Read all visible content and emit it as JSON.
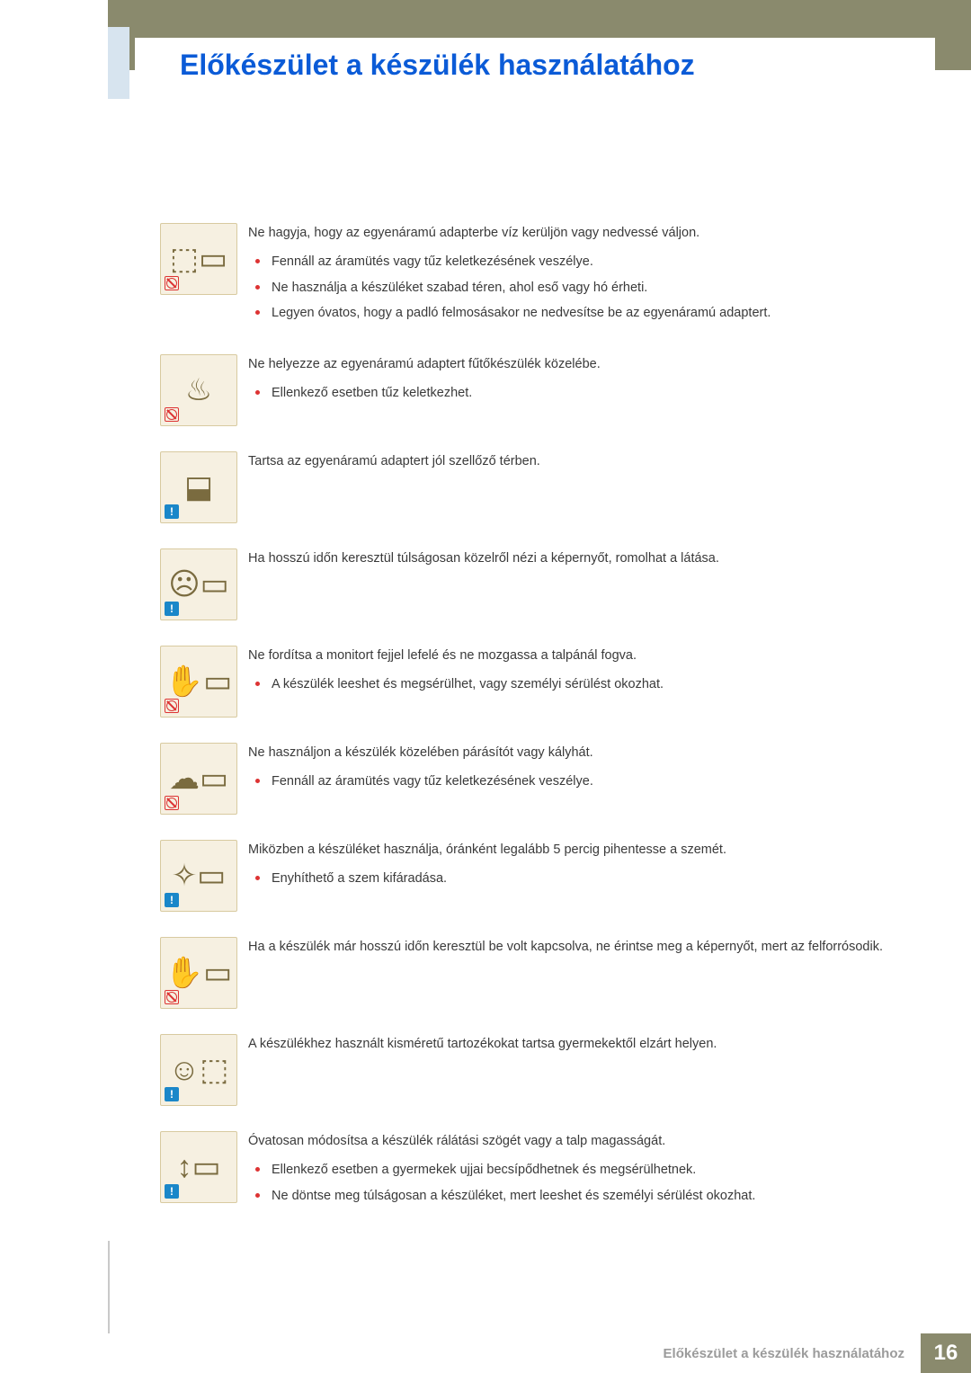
{
  "header": {
    "title": "Előkészület a készülék használatához"
  },
  "footer": {
    "label": "Előkészület a készülék használatához",
    "page": "16"
  },
  "colors": {
    "header_bar": "#8a8a6d",
    "title": "#0b5bd7",
    "icon_bg": "#f6f0e1",
    "icon_border": "#d8caa0",
    "bullet": "#d33",
    "info_badge": "#1a87c9",
    "footer_text": "#9b9b9b"
  },
  "items": [
    {
      "badge": "prohibit",
      "glyph": "⬚▭",
      "heading": "Ne hagyja, hogy az egyenáramú adapterbe víz kerüljön vagy nedvessé váljon.",
      "bullets": [
        "Fennáll az áramütés vagy tűz keletkezésének veszélye.",
        "Ne használja a készüléket szabad téren, ahol eső vagy hó érheti.",
        "Legyen óvatos, hogy a padló felmosásakor ne nedvesítse be az egyenáramú adaptert."
      ]
    },
    {
      "badge": "prohibit",
      "glyph": "♨",
      "heading": "Ne helyezze az egyenáramú adaptert fűtőkészülék közelébe.",
      "bullets": [
        "Ellenkező esetben tűz keletkezhet."
      ]
    },
    {
      "badge": "info",
      "glyph": "⬓",
      "heading": "Tartsa az egyenáramú adaptert jól szellőző térben.",
      "bullets": []
    },
    {
      "badge": "info",
      "glyph": "☹▭",
      "heading": "Ha hosszú időn keresztül túlságosan közelről nézi a képernyőt, romolhat a látása.",
      "bullets": []
    },
    {
      "badge": "prohibit",
      "glyph": "✋▭",
      "heading": "Ne fordítsa a monitort fejjel lefelé és ne mozgassa a talpánál fogva.",
      "bullets": [
        "A készülék leeshet és megsérülhet, vagy személyi sérülést okozhat."
      ]
    },
    {
      "badge": "prohibit",
      "glyph": "☁▭",
      "heading": "Ne használjon a készülék közelében párásítót vagy kályhát.",
      "bullets": [
        "Fennáll az áramütés vagy tűz keletkezésének veszélye."
      ]
    },
    {
      "badge": "info",
      "glyph": "✧▭",
      "heading": "Miközben a készüléket használja, óránként legalább 5 percig pihentesse a szemét.",
      "bullets": [
        "Enyhíthető a szem kifáradása."
      ]
    },
    {
      "badge": "prohibit",
      "glyph": "✋▭",
      "heading": "Ha a készülék már hosszú időn keresztül be volt kapcsolva, ne érintse meg a képernyőt, mert az felforrósodik.",
      "bullets": []
    },
    {
      "badge": "info",
      "glyph": "☺⬚",
      "heading": "A készülékhez használt kisméretű tartozékokat tartsa gyermekektől elzárt helyen.",
      "bullets": []
    },
    {
      "badge": "info",
      "glyph": "↕▭",
      "heading": "Óvatosan módosítsa a készülék rálátási szögét vagy a talp magasságát.",
      "bullets": [
        "Ellenkező esetben a gyermekek ujjai becsípődhetnek és megsérülhetnek.",
        "Ne döntse meg túlságosan a készüléket, mert leeshet és személyi sérülést okozhat."
      ]
    }
  ]
}
